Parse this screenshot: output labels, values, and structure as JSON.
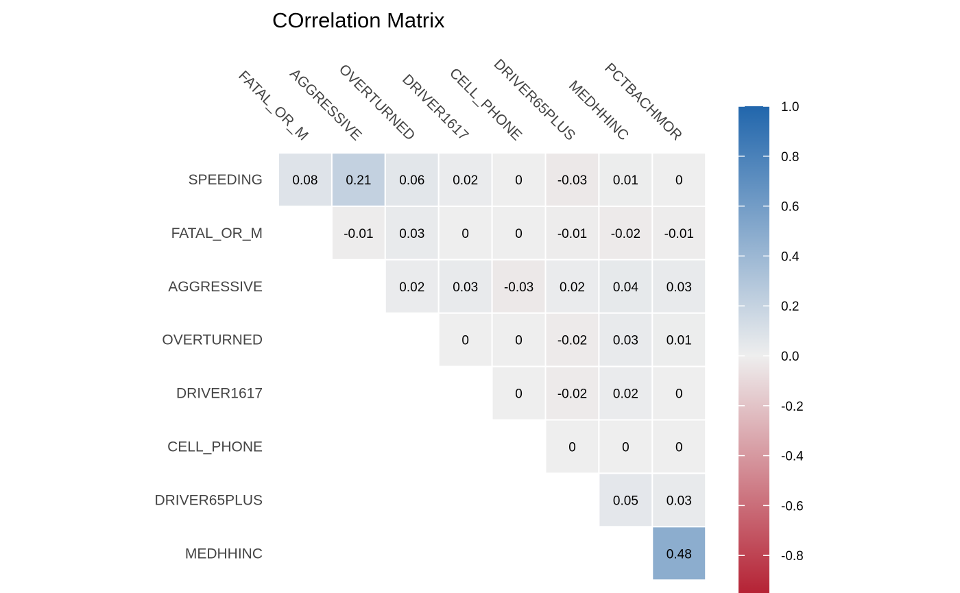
{
  "chart_data": {
    "type": "heatmap",
    "title": "COrrelation Matrix",
    "rows": [
      "SPEEDING",
      "FATAL_OR_M",
      "AGGRESSIVE",
      "OVERTURNED",
      "DRIVER1617",
      "CELL_PHONE",
      "DRIVER65PLUS",
      "MEDHHINC"
    ],
    "columns": [
      "FATAL_OR_M",
      "AGGRESSIVE",
      "OVERTURNED",
      "DRIVER1617",
      "CELL_PHONE",
      "DRIVER65PLUS",
      "MEDHHINC",
      "PCTBACHMOR"
    ],
    "values": [
      [
        0.08,
        0.21,
        0.06,
        0.02,
        0,
        -0.03,
        0.01,
        0
      ],
      [
        null,
        -0.01,
        0.03,
        0,
        0,
        -0.01,
        -0.02,
        -0.01
      ],
      [
        null,
        null,
        0.02,
        0.03,
        -0.03,
        0.02,
        0.04,
        0.03
      ],
      [
        null,
        null,
        null,
        0,
        0,
        -0.02,
        0.03,
        0.01
      ],
      [
        null,
        null,
        null,
        null,
        0,
        -0.02,
        0.02,
        0
      ],
      [
        null,
        null,
        null,
        null,
        null,
        0,
        0,
        0
      ],
      [
        null,
        null,
        null,
        null,
        null,
        null,
        0.05,
        0.03
      ],
      [
        null,
        null,
        null,
        null,
        null,
        null,
        null,
        0.48
      ]
    ],
    "colorbar": {
      "ticks": [
        "1.0",
        "0.8",
        "0.6",
        "0.4",
        "0.2",
        "0.0",
        "-0.2",
        "-0.4",
        "-0.6",
        "-0.8"
      ],
      "range": [
        -1,
        1
      ],
      "low_color": "#b2182b",
      "mid_color": "#eeeeee",
      "high_color": "#2166ac"
    }
  }
}
